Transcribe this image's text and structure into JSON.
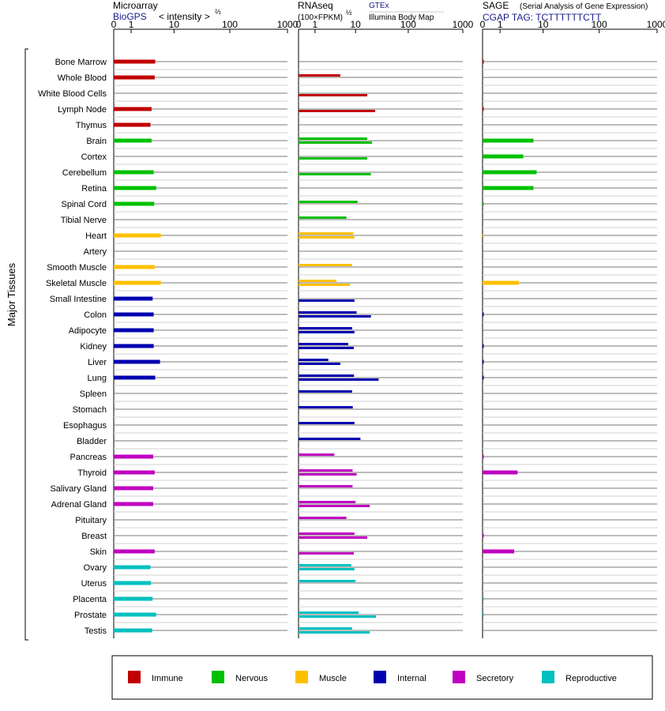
{
  "axis_label": "Major Tissues",
  "colors": {
    "Immune": "#c00000",
    "Nervous": "#00c000",
    "Muscle": "#ffc000",
    "Internal": "#0000b0",
    "Secretory": "#c000c0",
    "Reproductive": "#00c0c0"
  },
  "panels": {
    "microarray": {
      "title": "Microarray",
      "source": "BioGPS",
      "unit": "< intensity >",
      "unit_exp": "⅔",
      "ticks": [
        "0",
        "1",
        "10",
        "100",
        "1000"
      ]
    },
    "rnaseq": {
      "title": "RNAseq",
      "unit": "(100×FPKM)",
      "unit_exp": "½",
      "source1": "GTEx",
      "source2": "Illumina Body Map",
      "ticks": [
        "0",
        "1",
        "10",
        "100",
        "1000"
      ]
    },
    "sage": {
      "title": "SAGE",
      "subtitle": "(Serial Analysis of Gene Expression)",
      "source": "CGAP TAG: TCTTTTTTCTT",
      "ticks": [
        "0",
        "1",
        "10",
        "100",
        "1000"
      ]
    }
  },
  "legend": [
    {
      "label": "Immune",
      "color": "#c00000"
    },
    {
      "label": "Nervous",
      "color": "#00c000"
    },
    {
      "label": "Muscle",
      "color": "#ffc000"
    },
    {
      "label": "Internal",
      "color": "#0000b0"
    },
    {
      "label": "Secretory",
      "color": "#c000c0"
    },
    {
      "label": "Reproductive",
      "color": "#00c0c0"
    }
  ],
  "chart_data": {
    "type": "bar",
    "scale": "power",
    "xlim": [
      0,
      1000
    ],
    "categories": [
      "Bone Marrow",
      "Whole Blood",
      "White Blood Cells",
      "Lymph Node",
      "Thymus",
      "Brain",
      "Cortex",
      "Cerebellum",
      "Retina",
      "Spinal Cord",
      "Tibial Nerve",
      "Heart",
      "Artery",
      "Smooth Muscle",
      "Skeletal Muscle",
      "Small Intestine",
      "Colon",
      "Adipocyte",
      "Kidney",
      "Liver",
      "Lung",
      "Spleen",
      "Stomach",
      "Esophagus",
      "Bladder",
      "Pancreas",
      "Thyroid",
      "Salivary Gland",
      "Adrenal Gland",
      "Pituitary",
      "Breast",
      "Skin",
      "Ovary",
      "Uterus",
      "Placenta",
      "Prostate",
      "Testis"
    ],
    "groups": [
      "Immune",
      "Immune",
      "Immune",
      "Immune",
      "Immune",
      "Nervous",
      "Nervous",
      "Nervous",
      "Nervous",
      "Nervous",
      "Nervous",
      "Muscle",
      "Muscle",
      "Muscle",
      "Muscle",
      "Internal",
      "Internal",
      "Internal",
      "Internal",
      "Internal",
      "Internal",
      "Internal",
      "Internal",
      "Internal",
      "Internal",
      "Secretory",
      "Secretory",
      "Secretory",
      "Secretory",
      "Secretory",
      "Secretory",
      "Secretory",
      "Reproductive",
      "Reproductive",
      "Reproductive",
      "Reproductive",
      "Reproductive"
    ],
    "series": [
      {
        "name": "BioGPS",
        "values": [
          4.2,
          4.1,
          null,
          3.5,
          3.3,
          3.5,
          null,
          3.9,
          4.4,
          4.0,
          null,
          5.5,
          null,
          4.1,
          5.5,
          3.7,
          3.9,
          3.9,
          3.9,
          5.3,
          4.2,
          null,
          null,
          null,
          null,
          3.8,
          4.1,
          3.8,
          3.8,
          null,
          null,
          4.1,
          3.3,
          3.4,
          3.7,
          4.4,
          3.6
        ]
      },
      {
        "name": "GTEx",
        "values": [
          null,
          4.8,
          null,
          null,
          null,
          17,
          null,
          null,
          null,
          11,
          6.5,
          9,
          null,
          8.5,
          3.9,
          null,
          10.5,
          8.5,
          7.1,
          2.5,
          9.3,
          8.5,
          8.8,
          9.5,
          12.5,
          3.5,
          8.7,
          8.7,
          10,
          6.5,
          9.5,
          null,
          8.2,
          10,
          null,
          11.5,
          8.5
        ]
      },
      {
        "name": "Illumina Body Map",
        "values": [
          null,
          null,
          17,
          24,
          null,
          21,
          17,
          20,
          null,
          null,
          null,
          9.5,
          null,
          null,
          7.7,
          9.5,
          20,
          9.5,
          9.2,
          4.8,
          28,
          null,
          null,
          null,
          null,
          null,
          10.5,
          null,
          19,
          null,
          17,
          9.2,
          9.5,
          null,
          null,
          25,
          19
        ]
      },
      {
        "name": "SAGE",
        "values": [
          0.02,
          null,
          null,
          0.02,
          null,
          6.5,
          4.0,
          7.5,
          6.5,
          0.02,
          null,
          0.01,
          null,
          null,
          3.2,
          null,
          0.02,
          null,
          0.02,
          0.02,
          0.02,
          null,
          null,
          null,
          null,
          0.02,
          3.0,
          null,
          null,
          null,
          0.01,
          2.5,
          null,
          null,
          0.02,
          0.02,
          null
        ]
      }
    ]
  }
}
